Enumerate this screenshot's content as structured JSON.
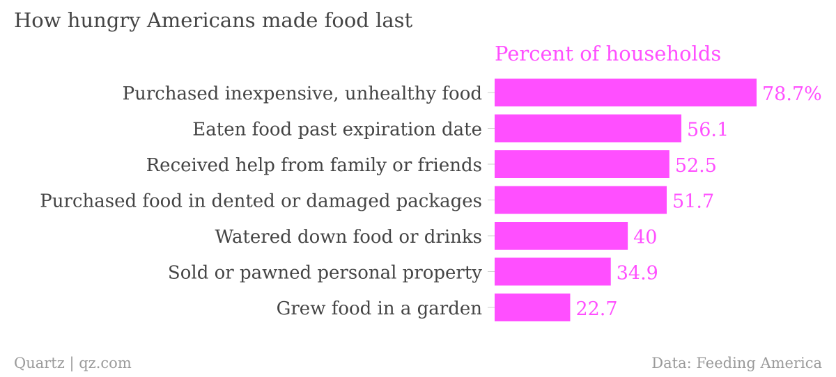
{
  "chart_data": {
    "type": "bar",
    "orientation": "horizontal",
    "title": "How hungry Americans made food last",
    "series": [
      {
        "name": "Percent of households",
        "color": "#ff4fff",
        "values": [
          78.7,
          56.1,
          52.5,
          51.7,
          40,
          34.9,
          22.7
        ],
        "value_labels": [
          "78.7%",
          "56.1",
          "52.5",
          "51.7",
          "40",
          "34.9",
          "22.7"
        ]
      }
    ],
    "categories": [
      "Purchased inexpensive, unhealthy food",
      "Eaten food past expiration date",
      "Received help from family or friends",
      "Purchased food in dented or damaged packages",
      "Watered down food or drinks",
      "Sold or pawned personal property",
      "Grew food in a garden"
    ],
    "xlim": [
      0,
      78.7
    ],
    "grid": false,
    "legend": "none"
  },
  "footer": {
    "source_left": "Quartz | qz.com",
    "source_right": "Data: Feeding America"
  },
  "colors": {
    "text": "#444444",
    "accent": "#ff4fff",
    "footer": "#9a9a9a"
  }
}
